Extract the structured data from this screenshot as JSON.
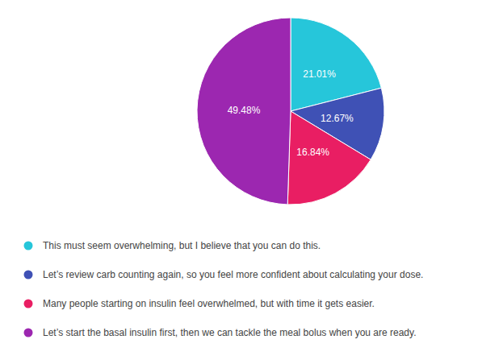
{
  "chart_data": {
    "type": "pie",
    "categories": [
      "This must seem overwhelming, but I believe that you can do this.",
      "Let’s review carb counting again, so you feel more confident about calculating your dose.",
      "Many people starting on insulin feel overwhelmed, but with time it gets easier.",
      "Let’s start the basal insulin first, then we can tackle the meal bolus when you are ready."
    ],
    "values": [
      21.01,
      12.67,
      16.84,
      49.48
    ],
    "value_labels": [
      "21.01%",
      "12.67%",
      "16.84%",
      "49.48%"
    ],
    "colors": [
      "#26c6da",
      "#3f51b5",
      "#e91e63",
      "#9c27b0"
    ],
    "data_labels": true,
    "legend": "bottom"
  }
}
